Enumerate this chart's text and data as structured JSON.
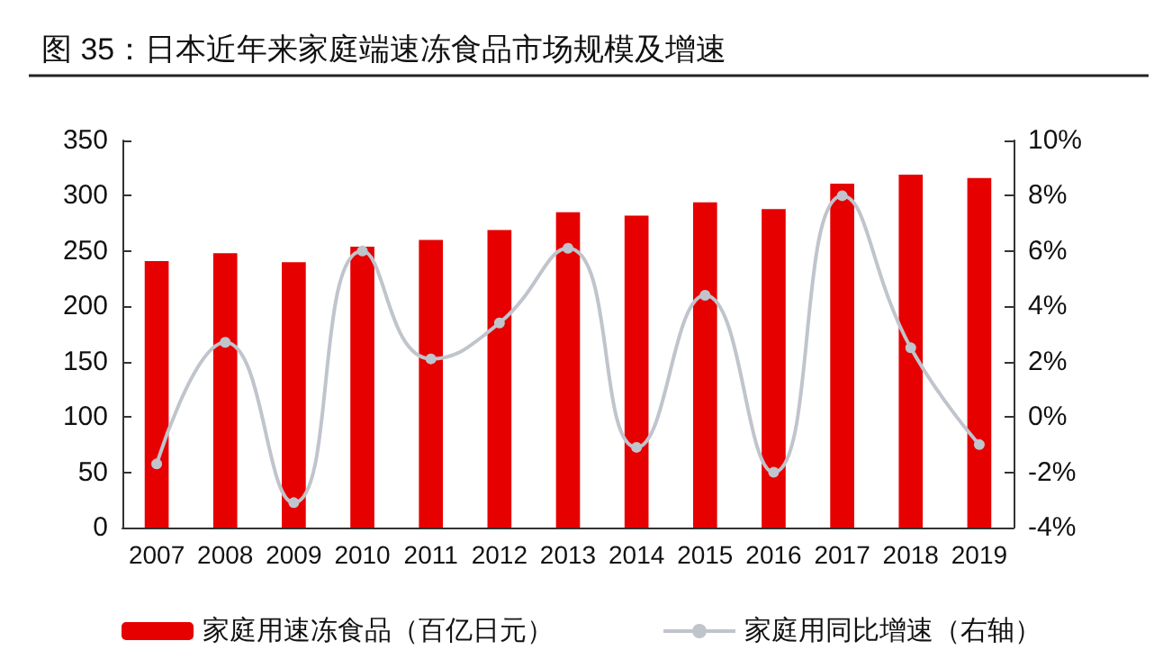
{
  "chart_data": {
    "type": "bar",
    "title": "图 35：日本近年来家庭端速冻食品市场规模及增速",
    "categories": [
      "2007",
      "2008",
      "2009",
      "2010",
      "2011",
      "2012",
      "2013",
      "2014",
      "2015",
      "2016",
      "2017",
      "2018",
      "2019"
    ],
    "series": [
      {
        "name": "家庭用速冻食品（百亿日元）",
        "color": "#e60000",
        "values": [
          241,
          248,
          240,
          254,
          260,
          269,
          285,
          282,
          294,
          288,
          311,
          319,
          316
        ]
      },
      {
        "name": "家庭用同比增速（右轴）",
        "type": "line",
        "axis": "y2",
        "color": "#c0c4cc",
        "values": [
          -1.7,
          2.7,
          -3.1,
          6.0,
          2.1,
          3.4,
          6.1,
          -1.1,
          4.4,
          -2.0,
          8.0,
          2.5,
          -1.0
        ]
      }
    ],
    "ylim": [
      0,
      350
    ],
    "yticks": [
      0,
      50,
      100,
      150,
      200,
      250,
      300,
      350
    ],
    "y2lim": [
      -4,
      10
    ],
    "y2ticks": [
      {
        "value": -4,
        "label": "-4%"
      },
      {
        "value": -2,
        "label": "-2%"
      },
      {
        "value": 0,
        "label": "0%"
      },
      {
        "value": 2,
        "label": "2%"
      },
      {
        "value": 4,
        "label": "4%"
      },
      {
        "value": 6,
        "label": "6%"
      },
      {
        "value": 8,
        "label": "8%"
      },
      {
        "value": 10,
        "label": "10%"
      }
    ],
    "grid": false,
    "legend": "bottom",
    "marker": "circle"
  }
}
